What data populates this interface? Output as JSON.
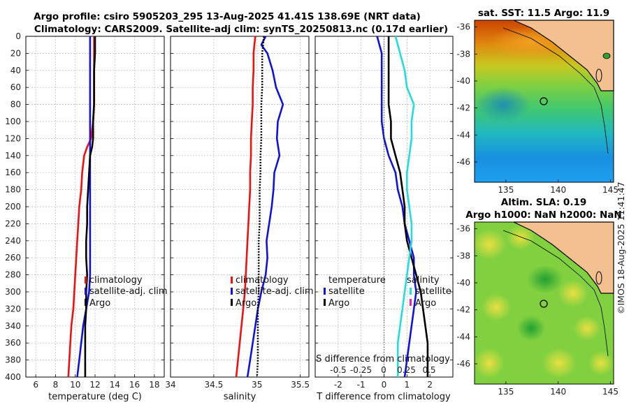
{
  "header": {
    "title_line1": "Argo profile: csiro 5905203_295 13-Aug-2025 41.41S 138.69E (NRT data)",
    "title_line2": "Climatology: CARS2009. Satellite-adj clim: synTS_20250813.nc (0.17d earlier)"
  },
  "depth_ticks": [
    "0",
    "20",
    "40",
    "60",
    "80",
    "100",
    "120",
    "140",
    "160",
    "180",
    "200",
    "220",
    "240",
    "260",
    "280",
    "300",
    "320",
    "340",
    "360",
    "380",
    "400"
  ],
  "legend_left": {
    "clim": "climatology",
    "sat": "satellite-adj. clim",
    "argo": "Argo"
  },
  "legend_diff": {
    "temp_title": "temperature",
    "sal_title": "salinity",
    "sat": "satellite",
    "argo": "Argo"
  },
  "diff_overlay": {
    "label": "S difference from climatology",
    "ticks": [
      "-0.5",
      "-0.25",
      "0",
      "0.25",
      "0.5"
    ]
  },
  "maps": {
    "sst_title": "sat. SST: 11.5 Argo: 11.9",
    "sla_title1": "Altim. SLA: 0.19",
    "sla_title2": "Argo h1000: NaN h2000: NaN",
    "lat_ticks": [
      "-36",
      "-38",
      "-40",
      "-42",
      "-44",
      "-46"
    ],
    "lon_ticks": [
      "135",
      "140",
      "145"
    ]
  },
  "watermark": "©IMOS 18-Aug-2025 11:41:47",
  "colors": {
    "climatology": "#ee1111",
    "satellite": "#1111dd",
    "argo": "#000000",
    "sat_salinity": "#22dddd",
    "sal_clim": "#ee22aa"
  },
  "chart_data": [
    {
      "type": "line",
      "panel": "temperature",
      "xlabel": "temperature (deg C)",
      "ylabel": "depth",
      "xlim": [
        5,
        19
      ],
      "ylim": [
        400,
        0
      ],
      "xticks": [
        "6",
        "8",
        "10",
        "12",
        "14",
        "16",
        "18"
      ],
      "depth": [
        0,
        20,
        40,
        60,
        80,
        100,
        120,
        130,
        140,
        160,
        180,
        200,
        220,
        240,
        260,
        280,
        300,
        320,
        340,
        360,
        380,
        400
      ],
      "series": [
        {
          "name": "climatology",
          "values": [
            11.9,
            11.9,
            11.9,
            11.9,
            11.9,
            11.8,
            11.6,
            11.2,
            10.9,
            10.7,
            10.6,
            10.4,
            10.3,
            10.2,
            10.1,
            10.0,
            9.9,
            9.8,
            9.6,
            9.5,
            9.4,
            9.3
          ]
        },
        {
          "name": "satellite-adj. clim",
          "values": [
            11.5,
            11.5,
            11.5,
            11.5,
            11.5,
            11.5,
            11.5,
            11.5,
            11.5,
            11.5,
            11.5,
            11.5,
            11.5,
            11.5,
            11.5,
            11.5,
            11.4,
            11.1,
            10.8,
            10.6,
            10.4,
            10.2
          ]
        },
        {
          "name": "Argo",
          "values": [
            12.0,
            12.0,
            11.9,
            11.9,
            11.9,
            11.8,
            11.8,
            11.7,
            11.5,
            11.4,
            11.3,
            11.2,
            11.2,
            11.1,
            11.1,
            11.2,
            11.1,
            11.1,
            11.0,
            11.0,
            11.0,
            11.0
          ]
        }
      ]
    },
    {
      "type": "line",
      "panel": "salinity",
      "xlabel": "salinity",
      "ylabel": "depth",
      "xlim": [
        34,
        35.6
      ],
      "ylim": [
        400,
        0
      ],
      "xticks": [
        "34",
        "34.5",
        "35",
        "35.5"
      ],
      "depth": [
        0,
        10,
        20,
        40,
        60,
        80,
        100,
        120,
        140,
        160,
        180,
        200,
        220,
        240,
        260,
        280,
        300,
        320,
        340,
        360,
        380,
        400
      ],
      "series": [
        {
          "name": "climatology",
          "values": [
            34.98,
            34.97,
            34.96,
            34.96,
            34.95,
            34.95,
            34.94,
            34.93,
            34.93,
            34.92,
            34.92,
            34.91,
            34.9,
            34.89,
            34.88,
            34.87,
            34.86,
            34.84,
            34.82,
            34.8,
            34.78,
            34.76
          ]
        },
        {
          "name": "satellite-adj. clim",
          "values": [
            35.1,
            35.05,
            35.12,
            35.18,
            35.22,
            35.3,
            35.24,
            35.23,
            35.26,
            35.2,
            35.19,
            35.17,
            35.14,
            35.11,
            35.12,
            35.1,
            35.05,
            35.01,
            34.98,
            34.95,
            34.92,
            34.89
          ]
        },
        {
          "name": "Argo",
          "values": [
            35.08,
            35.07,
            35.06,
            35.06,
            35.06,
            35.05,
            35.05,
            35.05,
            35.04,
            35.04,
            35.03,
            35.03,
            35.03,
            35.02,
            35.02,
            35.02,
            35.02,
            35.01,
            35.01,
            35.01,
            35.01,
            35.0
          ]
        }
      ]
    },
    {
      "type": "line",
      "panel": "difference",
      "xlabel": "T difference from climatology",
      "ylabel": "depth",
      "xlim": [
        -3,
        3
      ],
      "ylim": [
        400,
        0
      ],
      "xticks": [
        "-2",
        "-1",
        "0",
        "1",
        "2"
      ],
      "depth": [
        0,
        20,
        40,
        60,
        80,
        100,
        120,
        140,
        160,
        180,
        200,
        220,
        240,
        260,
        280,
        300,
        320,
        340,
        360,
        380,
        400
      ],
      "series": [
        {
          "name": "temperature satellite",
          "values": [
            -0.3,
            -0.1,
            -0.1,
            -0.1,
            -0.1,
            -0.1,
            0.0,
            0.2,
            0.5,
            0.6,
            0.8,
            0.9,
            1.1,
            1.3,
            1.3,
            1.4,
            1.3,
            1.2,
            1.1,
            1.0,
            0.9
          ]
        },
        {
          "name": "temperature Argo",
          "values": [
            0.2,
            0.2,
            0.2,
            0.2,
            0.2,
            0.3,
            0.3,
            0.5,
            0.7,
            0.8,
            0.9,
            0.9,
            1.0,
            1.2,
            1.4,
            1.6,
            1.7,
            1.8,
            1.9,
            1.9,
            1.9
          ]
        },
        {
          "name": "salinity satellite",
          "values": [
            0.5,
            0.7,
            0.9,
            1.0,
            1.3,
            1.2,
            1.2,
            1.1,
            1.0,
            1.0,
            1.1,
            1.2,
            1.2,
            1.1,
            1.0,
            0.9,
            0.8,
            0.7,
            0.6,
            0.6,
            0.6
          ]
        }
      ]
    }
  ]
}
